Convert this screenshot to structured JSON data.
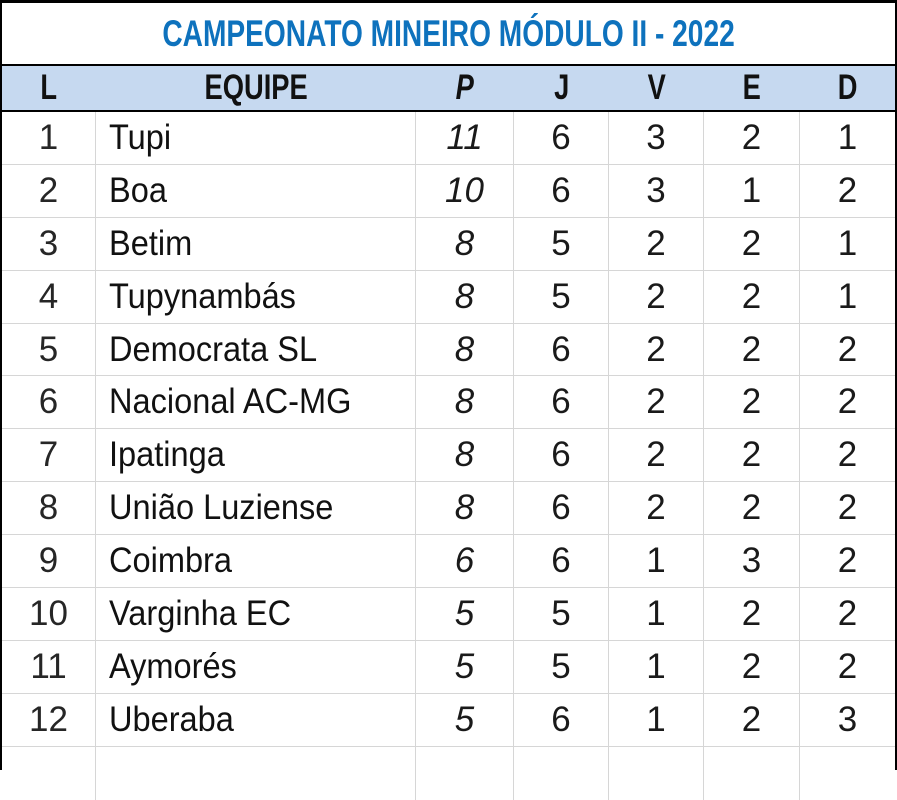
{
  "title": "CAMPEONATO MINEIRO MÓDULO II - 2022",
  "colors": {
    "title_blue": "#0e72bd",
    "header_background": "#c6d9f0",
    "outer_border": "#000000",
    "gridline": "#d6d6d6",
    "body_text": "#1a1a1a"
  },
  "table": {
    "columns": [
      {
        "key": "l",
        "label": "L",
        "italic": false
      },
      {
        "key": "equipe",
        "label": "EQUIPE",
        "italic": false
      },
      {
        "key": "p",
        "label": "P",
        "italic": true
      },
      {
        "key": "j",
        "label": "J",
        "italic": false
      },
      {
        "key": "v",
        "label": "V",
        "italic": false
      },
      {
        "key": "e",
        "label": "E",
        "italic": false
      },
      {
        "key": "d",
        "label": "D",
        "italic": false
      }
    ]
  },
  "chart_data": {
    "type": "table",
    "title": "CAMPEONATO MINEIRO MÓDULO II - 2022",
    "columns": [
      "L",
      "EQUIPE",
      "P",
      "J",
      "V",
      "E",
      "D"
    ],
    "rows": [
      {
        "l": 1,
        "equipe": "Tupi",
        "p": 11,
        "j": 6,
        "v": 3,
        "e": 2,
        "d": 1
      },
      {
        "l": 2,
        "equipe": "Boa",
        "p": 10,
        "j": 6,
        "v": 3,
        "e": 1,
        "d": 2
      },
      {
        "l": 3,
        "equipe": "Betim",
        "p": 8,
        "j": 5,
        "v": 2,
        "e": 2,
        "d": 1
      },
      {
        "l": 4,
        "equipe": "Tupynambás",
        "p": 8,
        "j": 5,
        "v": 2,
        "e": 2,
        "d": 1
      },
      {
        "l": 5,
        "equipe": "Democrata SL",
        "p": 8,
        "j": 6,
        "v": 2,
        "e": 2,
        "d": 2
      },
      {
        "l": 6,
        "equipe": "Nacional AC-MG",
        "p": 8,
        "j": 6,
        "v": 2,
        "e": 2,
        "d": 2
      },
      {
        "l": 7,
        "equipe": "Ipatinga",
        "p": 8,
        "j": 6,
        "v": 2,
        "e": 2,
        "d": 2
      },
      {
        "l": 8,
        "equipe": "União Luziense",
        "p": 8,
        "j": 6,
        "v": 2,
        "e": 2,
        "d": 2
      },
      {
        "l": 9,
        "equipe": "Coimbra",
        "p": 6,
        "j": 6,
        "v": 1,
        "e": 3,
        "d": 2
      },
      {
        "l": 10,
        "equipe": "Varginha EC",
        "p": 5,
        "j": 5,
        "v": 1,
        "e": 2,
        "d": 2
      },
      {
        "l": 11,
        "equipe": "Aymorés",
        "p": 5,
        "j": 5,
        "v": 1,
        "e": 2,
        "d": 2
      },
      {
        "l": 12,
        "equipe": "Uberaba",
        "p": 5,
        "j": 6,
        "v": 1,
        "e": 2,
        "d": 3
      }
    ]
  }
}
